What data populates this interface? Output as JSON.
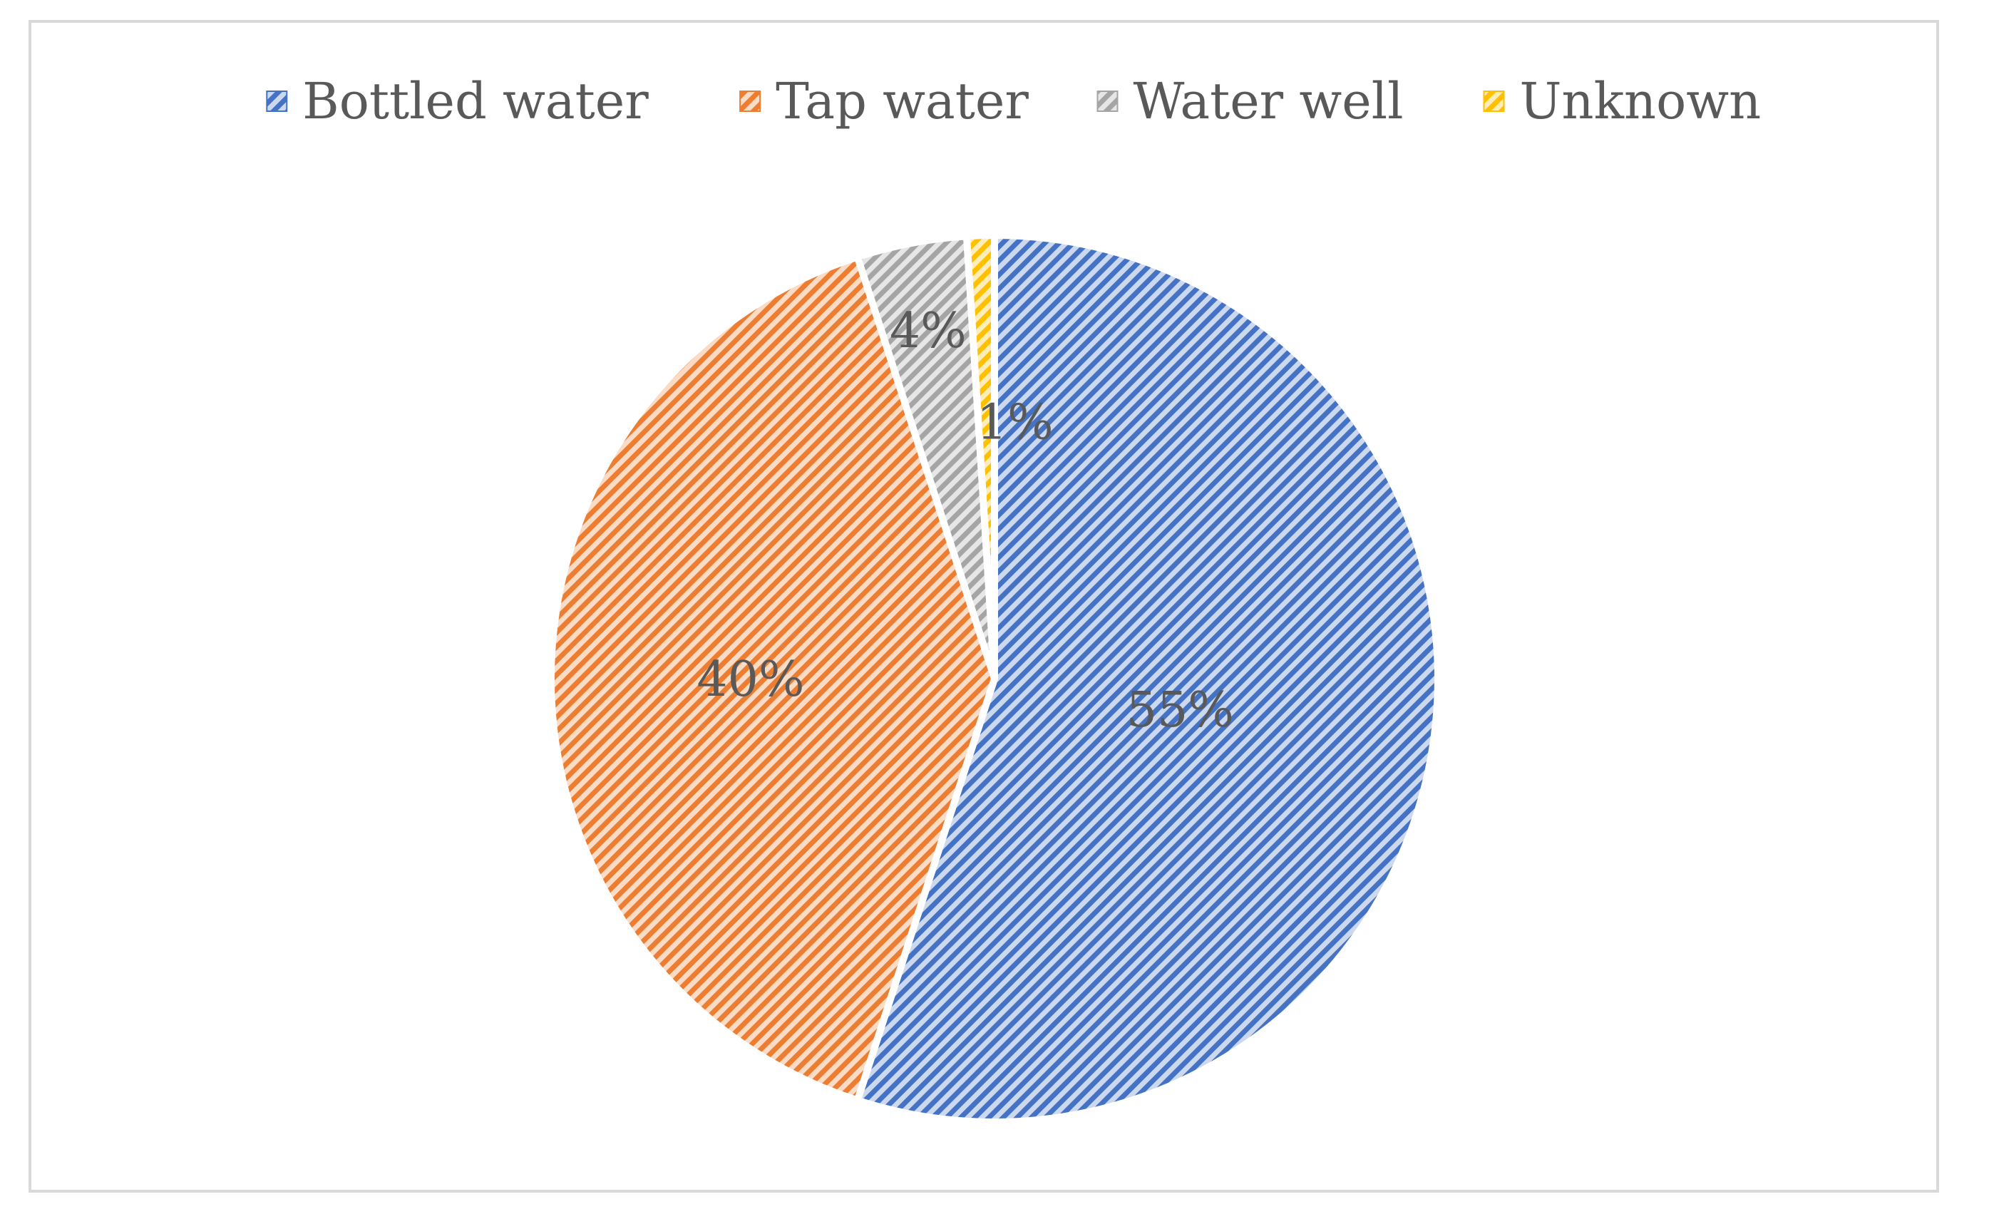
{
  "chart_data": {
    "type": "pie",
    "title": "",
    "categories": [
      "Bottled water",
      "Tap water",
      "Water well",
      "Unknown"
    ],
    "values": [
      55,
      40,
      4,
      1
    ],
    "data_labels": [
      "55%",
      "40%",
      "4%",
      "1%"
    ],
    "colors": [
      "#4472c4",
      "#ed7d31",
      "#a5a5a5",
      "#ffc000"
    ],
    "fill": "diagonal-hatch",
    "legend_position": "top",
    "start_angle_deg": 0,
    "direction": "clockwise"
  }
}
